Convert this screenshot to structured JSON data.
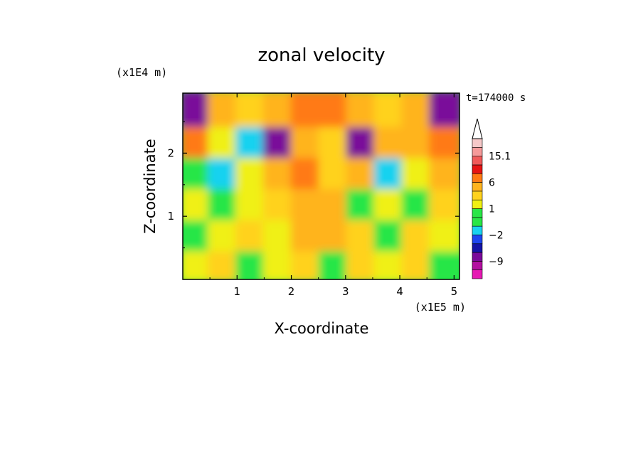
{
  "chart_data": {
    "type": "heatmap",
    "title": "zonal velocity",
    "xlabel": "X-coordinate",
    "ylabel": "Z-coordinate",
    "x_scale_note": "(x1E5 m)",
    "y_scale_note": "(x1E4 m)",
    "time_label": "t=174000 s",
    "xlim": [
      0,
      5.1
    ],
    "ylim": [
      0,
      2.95
    ],
    "x_ticks": [
      1,
      2,
      3,
      4,
      5
    ],
    "y_ticks": [
      1,
      2
    ],
    "x_tick_labels": [
      "1",
      "2",
      "3",
      "4",
      "5"
    ],
    "y_tick_labels": [
      "1",
      "2"
    ],
    "colorbar": {
      "levels": [
        -15,
        -12,
        -9,
        -6,
        -3,
        -2,
        -1,
        0,
        1,
        2,
        3,
        6,
        9,
        12,
        15.1,
        18
      ],
      "colors": [
        "#e619b3",
        "#b30fa0",
        "#7a0a9a",
        "#1414a8",
        "#1e46f0",
        "#19d2f0",
        "#28e646",
        "#28e646",
        "#f0f014",
        "#ffd21e",
        "#ffb41e",
        "#ff7a14",
        "#e61414",
        "#f05a5a",
        "#f59a9a",
        "#f5c8c8"
      ],
      "tick_labels": [
        "15.1",
        "6",
        "1",
        "-2",
        "-9"
      ],
      "extend_top_arrow": true
    },
    "field": {
      "grid_nx": 10,
      "grid_nz": 6,
      "values_bottom_to_top": [
        [
          1,
          2,
          0,
          1,
          2,
          -1,
          2,
          1,
          2,
          0
        ],
        [
          0,
          1,
          2,
          1,
          3,
          4,
          2,
          0,
          2,
          1
        ],
        [
          1,
          0,
          1,
          2,
          5,
          3,
          0,
          1,
          0,
          2
        ],
        [
          0,
          -2,
          1,
          4,
          6,
          2,
          3,
          -2,
          1,
          3
        ],
        [
          6,
          1,
          -2,
          -8,
          3,
          2,
          -7,
          4,
          5,
          6
        ],
        [
          -9,
          3,
          2,
          4,
          8,
          6,
          5,
          2,
          3,
          -9
        ]
      ]
    }
  }
}
